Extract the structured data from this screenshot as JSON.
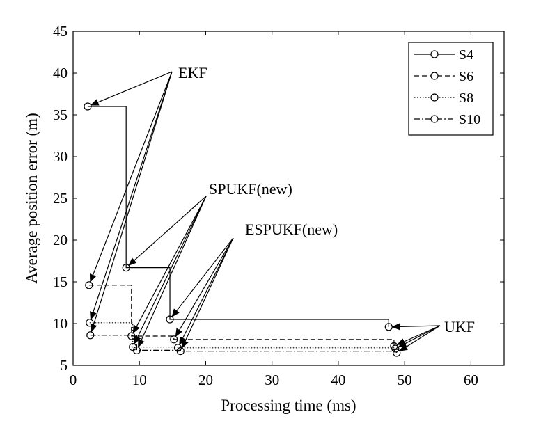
{
  "chart_data": {
    "type": "line",
    "title": "",
    "xlabel": "Processing time (ms)",
    "ylabel": "Average position error (m)",
    "xlim": [
      0,
      65
    ],
    "ylim": [
      5,
      45
    ],
    "xticks": [
      0,
      10,
      20,
      30,
      40,
      50,
      60
    ],
    "yticks": [
      5,
      10,
      15,
      20,
      25,
      30,
      35,
      40,
      45
    ],
    "grid": false,
    "legend_position": "top-right",
    "series": [
      {
        "name": "S4",
        "line_style": "solid",
        "x": [
          2.2,
          8.0,
          14.6,
          47.6
        ],
        "y": [
          36.0,
          16.7,
          10.5,
          9.6
        ]
      },
      {
        "name": "S6",
        "line_style": "dashed",
        "x": [
          2.4,
          8.8,
          15.2,
          48.4
        ],
        "y": [
          14.6,
          8.5,
          8.1,
          7.3
        ]
      },
      {
        "name": "S8",
        "line_style": "dotted",
        "x": [
          2.5,
          9.0,
          15.8,
          48.6
        ],
        "y": [
          10.1,
          7.2,
          7.1,
          7.0
        ]
      },
      {
        "name": "S10",
        "line_style": "dashdot",
        "x": [
          2.6,
          9.6,
          16.2,
          48.8
        ],
        "y": [
          8.6,
          6.8,
          6.7,
          6.5
        ]
      }
    ],
    "annotations": [
      {
        "text": "EKF",
        "point_index": 0
      },
      {
        "text": "SPUKF(new)",
        "point_index": 1
      },
      {
        "text": "ESPUKF(new)",
        "point_index": 2
      },
      {
        "text": "UKF",
        "point_index": 3
      }
    ]
  }
}
